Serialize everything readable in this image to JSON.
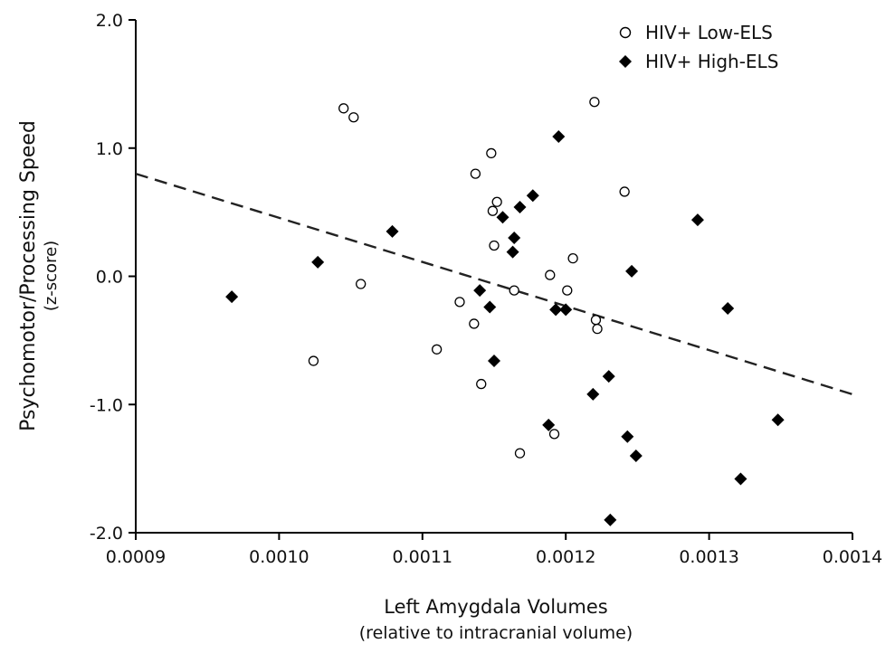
{
  "chart_data": {
    "type": "scatter",
    "title": "",
    "xlabel": "Left Amygdala Volumes",
    "xlabel_sub": "(relative to intracranial volume)",
    "ylabel": "Psychomotor/Processing Speed",
    "ylabel_sub": "(z-score)",
    "xlim": [
      0.0009,
      0.0014
    ],
    "ylim": [
      -2.0,
      2.0
    ],
    "x_ticks": [
      "0.0009",
      "0.0010",
      "0.0011",
      "0.0012",
      "0.0013",
      "0.0014"
    ],
    "y_ticks": [
      "2.0",
      "1.0",
      "0.0",
      "-1.0",
      "-2.0"
    ],
    "grid": false,
    "legend_position": "top-right",
    "trendline": {
      "style": "dashed",
      "color": "#222222",
      "points": [
        [
          0.0009,
          0.8
        ],
        [
          0.0014,
          -0.92
        ]
      ]
    },
    "series": [
      {
        "name": "HIV+ Low-ELS",
        "marker": "open-circle",
        "color": "#000000",
        "points": [
          [
            0.001045,
            1.31
          ],
          [
            0.001052,
            1.24
          ],
          [
            0.001057,
            -0.06
          ],
          [
            0.001024,
            -0.66
          ],
          [
            0.00111,
            -0.57
          ],
          [
            0.001126,
            -0.2
          ],
          [
            0.001136,
            -0.37
          ],
          [
            0.001137,
            0.8
          ],
          [
            0.001141,
            -0.84
          ],
          [
            0.001148,
            0.96
          ],
          [
            0.001149,
            0.51
          ],
          [
            0.00115,
            0.24
          ],
          [
            0.001152,
            0.58
          ],
          [
            0.001164,
            -0.11
          ],
          [
            0.001168,
            -1.38
          ],
          [
            0.001189,
            0.01
          ],
          [
            0.001192,
            -1.23
          ],
          [
            0.001201,
            -0.11
          ],
          [
            0.001205,
            0.14
          ],
          [
            0.00122,
            1.36
          ],
          [
            0.001221,
            -0.34
          ],
          [
            0.001222,
            -0.41
          ],
          [
            0.001241,
            0.66
          ]
        ]
      },
      {
        "name": "HIV+ High-ELS",
        "marker": "filled-diamond",
        "color": "#000000",
        "points": [
          [
            0.000967,
            -0.16
          ],
          [
            0.001027,
            0.11
          ],
          [
            0.001079,
            0.35
          ],
          [
            0.00114,
            -0.11
          ],
          [
            0.001147,
            -0.24
          ],
          [
            0.00115,
            -0.66
          ],
          [
            0.001156,
            0.46
          ],
          [
            0.001163,
            0.19
          ],
          [
            0.001164,
            0.3
          ],
          [
            0.001168,
            0.54
          ],
          [
            0.001177,
            0.63
          ],
          [
            0.001188,
            -1.16
          ],
          [
            0.001193,
            -0.26
          ],
          [
            0.001195,
            1.09
          ],
          [
            0.0012,
            -0.26
          ],
          [
            0.001219,
            -0.92
          ],
          [
            0.00123,
            -0.78
          ],
          [
            0.001231,
            -1.9
          ],
          [
            0.001243,
            -1.25
          ],
          [
            0.001246,
            0.04
          ],
          [
            0.001249,
            -1.4
          ],
          [
            0.001292,
            0.44
          ],
          [
            0.001313,
            -0.25
          ],
          [
            0.001322,
            -1.58
          ],
          [
            0.001348,
            -1.12
          ]
        ]
      }
    ]
  }
}
